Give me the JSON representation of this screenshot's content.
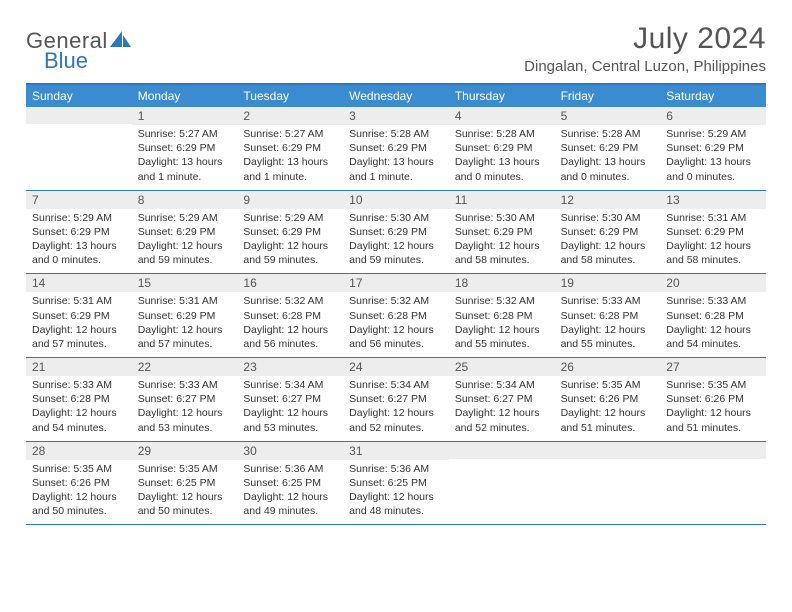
{
  "logo": {
    "text1": "General",
    "text2": "Blue"
  },
  "title": "July 2024",
  "location": "Dingalan, Central Luzon, Philippines",
  "colors": {
    "header_bg": "#3a8bd0",
    "header_text": "#ffffff",
    "border": "#2d77bd",
    "daynum_bg": "#ededed",
    "text": "#333333",
    "muted": "#555555",
    "logo_accent": "#2d77bd"
  },
  "day_labels": [
    "Sunday",
    "Monday",
    "Tuesday",
    "Wednesday",
    "Thursday",
    "Friday",
    "Saturday"
  ],
  "weeks": [
    [
      {
        "num": "",
        "sunrise": "",
        "sunset": "",
        "daylight1": "",
        "daylight2": ""
      },
      {
        "num": "1",
        "sunrise": "Sunrise: 5:27 AM",
        "sunset": "Sunset: 6:29 PM",
        "daylight1": "Daylight: 13 hours",
        "daylight2": "and 1 minute."
      },
      {
        "num": "2",
        "sunrise": "Sunrise: 5:27 AM",
        "sunset": "Sunset: 6:29 PM",
        "daylight1": "Daylight: 13 hours",
        "daylight2": "and 1 minute."
      },
      {
        "num": "3",
        "sunrise": "Sunrise: 5:28 AM",
        "sunset": "Sunset: 6:29 PM",
        "daylight1": "Daylight: 13 hours",
        "daylight2": "and 1 minute."
      },
      {
        "num": "4",
        "sunrise": "Sunrise: 5:28 AM",
        "sunset": "Sunset: 6:29 PM",
        "daylight1": "Daylight: 13 hours",
        "daylight2": "and 0 minutes."
      },
      {
        "num": "5",
        "sunrise": "Sunrise: 5:28 AM",
        "sunset": "Sunset: 6:29 PM",
        "daylight1": "Daylight: 13 hours",
        "daylight2": "and 0 minutes."
      },
      {
        "num": "6",
        "sunrise": "Sunrise: 5:29 AM",
        "sunset": "Sunset: 6:29 PM",
        "daylight1": "Daylight: 13 hours",
        "daylight2": "and 0 minutes."
      }
    ],
    [
      {
        "num": "7",
        "sunrise": "Sunrise: 5:29 AM",
        "sunset": "Sunset: 6:29 PM",
        "daylight1": "Daylight: 13 hours",
        "daylight2": "and 0 minutes."
      },
      {
        "num": "8",
        "sunrise": "Sunrise: 5:29 AM",
        "sunset": "Sunset: 6:29 PM",
        "daylight1": "Daylight: 12 hours",
        "daylight2": "and 59 minutes."
      },
      {
        "num": "9",
        "sunrise": "Sunrise: 5:29 AM",
        "sunset": "Sunset: 6:29 PM",
        "daylight1": "Daylight: 12 hours",
        "daylight2": "and 59 minutes."
      },
      {
        "num": "10",
        "sunrise": "Sunrise: 5:30 AM",
        "sunset": "Sunset: 6:29 PM",
        "daylight1": "Daylight: 12 hours",
        "daylight2": "and 59 minutes."
      },
      {
        "num": "11",
        "sunrise": "Sunrise: 5:30 AM",
        "sunset": "Sunset: 6:29 PM",
        "daylight1": "Daylight: 12 hours",
        "daylight2": "and 58 minutes."
      },
      {
        "num": "12",
        "sunrise": "Sunrise: 5:30 AM",
        "sunset": "Sunset: 6:29 PM",
        "daylight1": "Daylight: 12 hours",
        "daylight2": "and 58 minutes."
      },
      {
        "num": "13",
        "sunrise": "Sunrise: 5:31 AM",
        "sunset": "Sunset: 6:29 PM",
        "daylight1": "Daylight: 12 hours",
        "daylight2": "and 58 minutes."
      }
    ],
    [
      {
        "num": "14",
        "sunrise": "Sunrise: 5:31 AM",
        "sunset": "Sunset: 6:29 PM",
        "daylight1": "Daylight: 12 hours",
        "daylight2": "and 57 minutes."
      },
      {
        "num": "15",
        "sunrise": "Sunrise: 5:31 AM",
        "sunset": "Sunset: 6:29 PM",
        "daylight1": "Daylight: 12 hours",
        "daylight2": "and 57 minutes."
      },
      {
        "num": "16",
        "sunrise": "Sunrise: 5:32 AM",
        "sunset": "Sunset: 6:28 PM",
        "daylight1": "Daylight: 12 hours",
        "daylight2": "and 56 minutes."
      },
      {
        "num": "17",
        "sunrise": "Sunrise: 5:32 AM",
        "sunset": "Sunset: 6:28 PM",
        "daylight1": "Daylight: 12 hours",
        "daylight2": "and 56 minutes."
      },
      {
        "num": "18",
        "sunrise": "Sunrise: 5:32 AM",
        "sunset": "Sunset: 6:28 PM",
        "daylight1": "Daylight: 12 hours",
        "daylight2": "and 55 minutes."
      },
      {
        "num": "19",
        "sunrise": "Sunrise: 5:33 AM",
        "sunset": "Sunset: 6:28 PM",
        "daylight1": "Daylight: 12 hours",
        "daylight2": "and 55 minutes."
      },
      {
        "num": "20",
        "sunrise": "Sunrise: 5:33 AM",
        "sunset": "Sunset: 6:28 PM",
        "daylight1": "Daylight: 12 hours",
        "daylight2": "and 54 minutes."
      }
    ],
    [
      {
        "num": "21",
        "sunrise": "Sunrise: 5:33 AM",
        "sunset": "Sunset: 6:28 PM",
        "daylight1": "Daylight: 12 hours",
        "daylight2": "and 54 minutes."
      },
      {
        "num": "22",
        "sunrise": "Sunrise: 5:33 AM",
        "sunset": "Sunset: 6:27 PM",
        "daylight1": "Daylight: 12 hours",
        "daylight2": "and 53 minutes."
      },
      {
        "num": "23",
        "sunrise": "Sunrise: 5:34 AM",
        "sunset": "Sunset: 6:27 PM",
        "daylight1": "Daylight: 12 hours",
        "daylight2": "and 53 minutes."
      },
      {
        "num": "24",
        "sunrise": "Sunrise: 5:34 AM",
        "sunset": "Sunset: 6:27 PM",
        "daylight1": "Daylight: 12 hours",
        "daylight2": "and 52 minutes."
      },
      {
        "num": "25",
        "sunrise": "Sunrise: 5:34 AM",
        "sunset": "Sunset: 6:27 PM",
        "daylight1": "Daylight: 12 hours",
        "daylight2": "and 52 minutes."
      },
      {
        "num": "26",
        "sunrise": "Sunrise: 5:35 AM",
        "sunset": "Sunset: 6:26 PM",
        "daylight1": "Daylight: 12 hours",
        "daylight2": "and 51 minutes."
      },
      {
        "num": "27",
        "sunrise": "Sunrise: 5:35 AM",
        "sunset": "Sunset: 6:26 PM",
        "daylight1": "Daylight: 12 hours",
        "daylight2": "and 51 minutes."
      }
    ],
    [
      {
        "num": "28",
        "sunrise": "Sunrise: 5:35 AM",
        "sunset": "Sunset: 6:26 PM",
        "daylight1": "Daylight: 12 hours",
        "daylight2": "and 50 minutes."
      },
      {
        "num": "29",
        "sunrise": "Sunrise: 5:35 AM",
        "sunset": "Sunset: 6:25 PM",
        "daylight1": "Daylight: 12 hours",
        "daylight2": "and 50 minutes."
      },
      {
        "num": "30",
        "sunrise": "Sunrise: 5:36 AM",
        "sunset": "Sunset: 6:25 PM",
        "daylight1": "Daylight: 12 hours",
        "daylight2": "and 49 minutes."
      },
      {
        "num": "31",
        "sunrise": "Sunrise: 5:36 AM",
        "sunset": "Sunset: 6:25 PM",
        "daylight1": "Daylight: 12 hours",
        "daylight2": "and 48 minutes."
      },
      {
        "num": "",
        "sunrise": "",
        "sunset": "",
        "daylight1": "",
        "daylight2": ""
      },
      {
        "num": "",
        "sunrise": "",
        "sunset": "",
        "daylight1": "",
        "daylight2": ""
      },
      {
        "num": "",
        "sunrise": "",
        "sunset": "",
        "daylight1": "",
        "daylight2": ""
      }
    ]
  ]
}
